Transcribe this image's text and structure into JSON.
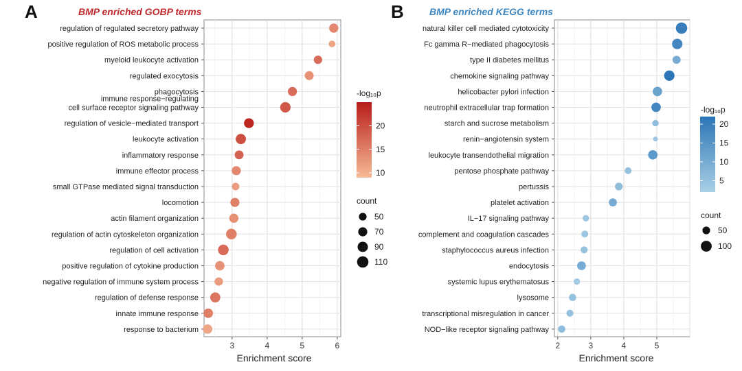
{
  "chart_data": [
    {
      "type": "scatter",
      "panel": "A",
      "title": "BMP enriched GOBP terms",
      "title_color": "#c0282d",
      "xlabel": "Enrichment score",
      "ylabel": "",
      "xlim": [
        2.2,
        6.1
      ],
      "xticks": [
        3,
        4,
        5,
        6
      ],
      "grid": true,
      "categories": [
        "regulation of regulated secretory pathway",
        "positive regulation of ROS metabolic process",
        "myeloid leukocyte activation",
        "regulated exocytosis",
        "phagocytosis",
        [
          "immune response−regulating",
          "cell surface receptor signaling pathway"
        ],
        "regulation of vesicle−mediated transport",
        "leukocyte activation",
        "inflammatory response",
        "immune effector process",
        "small GTPase mediated signal transduction",
        "locomotion",
        "actin filament organization",
        "regulation of actin cytoskeleton organization",
        "regulation of cell activation",
        "positive regulation of cytokine production",
        "negative regulation of immune system process",
        "regulation of defense response",
        "innate immune response",
        "response to bacterium"
      ],
      "x": [
        5.9,
        5.85,
        5.45,
        5.2,
        4.72,
        4.52,
        3.48,
        3.25,
        3.2,
        3.12,
        3.1,
        3.08,
        3.05,
        2.98,
        2.75,
        2.65,
        2.62,
        2.52,
        2.32,
        2.3
      ],
      "count": [
        72,
        38,
        60,
        68,
        70,
        92,
        82,
        88,
        66,
        70,
        48,
        70,
        72,
        96,
        96,
        76,
        60,
        86,
        76,
        76
      ],
      "neglog10p": [
        14,
        11,
        17,
        13,
        17,
        19,
        24,
        20,
        18,
        14,
        12,
        15,
        13,
        15,
        17,
        13,
        12,
        16,
        15,
        11
      ],
      "color_legend": {
        "title": "-log₁₀p",
        "ticks": [
          10,
          15,
          20
        ],
        "range": [
          9,
          25
        ],
        "low": "#f7b996",
        "high": "#b81d1b"
      },
      "size_legend": {
        "title": "count",
        "values": [
          50,
          70,
          90,
          110
        ]
      }
    },
    {
      "type": "scatter",
      "panel": "B",
      "title": "BMP enriched KEGG terms",
      "title_color": "#3d86bf",
      "xlabel": "Enrichment score",
      "ylabel": "",
      "xlim": [
        1.9,
        6.0
      ],
      "xticks": [
        2,
        3,
        4,
        5
      ],
      "grid": true,
      "categories": [
        "natural killer cell mediated cytotoxicity",
        "Fc gamma R−mediated phagocytosis",
        "type II diabetes mellitus",
        "chemokine signaling pathway",
        "helicobacter pylori infection",
        "neutrophil extracellular trap formation",
        "starch and sucrose metabolism",
        "renin−angiotensin system",
        "leukocyte transendothelial migration",
        "pentose phosphate pathway",
        "pertussis",
        "platelet activation",
        "IL−17 signaling pathway",
        "complement and coagulation cascades",
        "staphylococcus aureus infection",
        "endocytosis",
        "systemic lupus erythematosus",
        "lysosome",
        "transcriptional misregulation in cancer",
        "NOD−like receptor signaling pathway"
      ],
      "x": [
        5.75,
        5.62,
        5.6,
        5.38,
        5.02,
        4.98,
        4.96,
        4.96,
        4.88,
        4.13,
        3.85,
        3.67,
        2.85,
        2.82,
        2.8,
        2.72,
        2.58,
        2.45,
        2.37,
        2.12
      ],
      "count": [
        110,
        92,
        55,
        92,
        75,
        75,
        35,
        20,
        75,
        40,
        50,
        55,
        35,
        40,
        42,
        65,
        35,
        45,
        42,
        45
      ],
      "neglog10p": [
        20,
        18,
        10,
        22,
        12,
        18,
        6,
        4,
        14,
        5,
        6,
        10,
        4,
        4,
        5,
        10,
        3,
        5,
        5,
        6
      ],
      "color_legend": {
        "title": "-log₁₀p",
        "ticks": [
          5,
          10,
          15,
          20
        ],
        "range": [
          2,
          22
        ],
        "low": "#a9cfe6",
        "high": "#2b75b6"
      },
      "size_legend": {
        "title": "count",
        "values": [
          50,
          100
        ]
      }
    }
  ]
}
